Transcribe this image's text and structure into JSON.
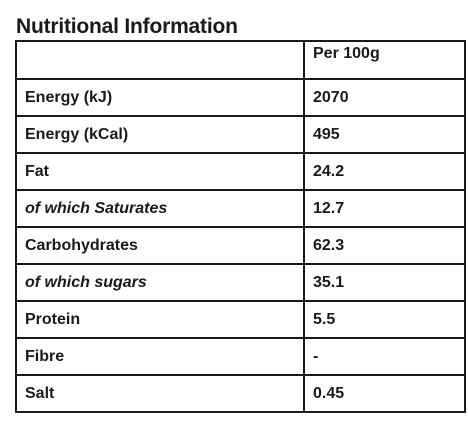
{
  "title": "Nutritional Information",
  "table": {
    "header": [
      "",
      "Per 100g"
    ],
    "rows": [
      {
        "nutrient": "Energy (kJ)",
        "value": "2070",
        "italic": false
      },
      {
        "nutrient": "Energy (kCal)",
        "value": "495",
        "italic": false
      },
      {
        "nutrient": "Fat",
        "value": "24.2",
        "italic": false
      },
      {
        "nutrient": "of which Saturates",
        "value": "12.7",
        "italic": true
      },
      {
        "nutrient": "Carbohydrates",
        "value": "62.3",
        "italic": false
      },
      {
        "nutrient": "of which sugars",
        "value": "35.1",
        "italic": true
      },
      {
        "nutrient": "Protein",
        "value": "5.5",
        "italic": false
      },
      {
        "nutrient": "Fibre",
        "value": "-",
        "italic": false
      },
      {
        "nutrient": "Salt",
        "value": "0.45",
        "italic": false
      }
    ]
  }
}
